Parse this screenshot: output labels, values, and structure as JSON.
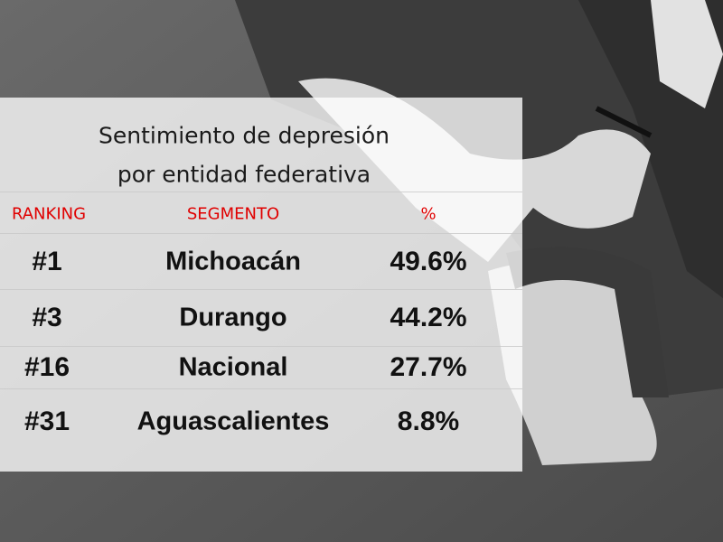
{
  "title": {
    "line1": "Sentimiento de depresión",
    "line2": "por entidad federativa"
  },
  "table": {
    "header": [
      "RANKING",
      "SEGMENTO",
      "%"
    ],
    "rows": [
      [
        "#1",
        "Michoacán",
        "49.6%"
      ],
      [
        "#3",
        "Durango",
        "44.2%"
      ],
      [
        "#16",
        "Nacional",
        "27.7%"
      ],
      [
        "#31",
        "Aguascalientes",
        "8.8%"
      ]
    ]
  }
}
